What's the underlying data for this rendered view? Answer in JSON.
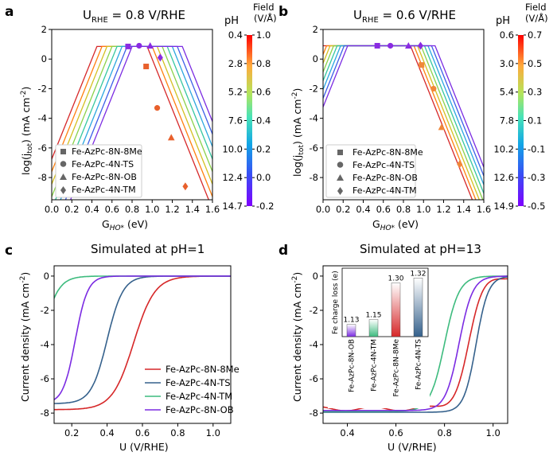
{
  "colors": {
    "red": "#d62728",
    "blue": "#35618c",
    "green": "#3dbb7e",
    "purple": "#7b2be2"
  },
  "panels": {
    "a": {
      "label": "a",
      "title_prefix": "U",
      "title_sub": "RHE",
      "title_suffix": " =  0.8 V/RHE",
      "ylabel": "log(j",
      "ylabel_sub": "tot",
      "ylabel_suffix": ") (mA cm",
      "ylabel_sup": "-2",
      "ylabel_end": ")",
      "xlabel": "G",
      "xlabel_sub": "HO*",
      "xlabel_suffix": " (eV)",
      "cbar_left_title": "pH",
      "cbar_right_title_1": "Field",
      "cbar_right_title_2": "(V/Å)",
      "cbar_left_ticks": [
        "0.4",
        "2.8",
        "5.2",
        "7.6",
        "10.0",
        "12.4",
        "14.7"
      ],
      "cbar_right_ticks": [
        "1.0",
        "0.8",
        "0.6",
        "0.4",
        "0.2",
        "0.0",
        "-0.2"
      ],
      "legend": [
        "Fe-AzPc-8N-8Me",
        "Fe-AzPc-4N-TS",
        "Fe-AzPc-8N-OB",
        "Fe-AzPc-4N-TM"
      ]
    },
    "b": {
      "label": "b",
      "title_prefix": "U",
      "title_sub": "RHE",
      "title_suffix": " =  0.6 V/RHE",
      "ylabel": "log(j",
      "ylabel_sub": "tot",
      "ylabel_suffix": ") (mA cm",
      "ylabel_sup": "-2",
      "ylabel_end": ")",
      "xlabel": "G",
      "xlabel_sub": "HO*",
      "xlabel_suffix": " (eV)",
      "cbar_left_title": "pH",
      "cbar_right_title_1": "Field",
      "cbar_right_title_2": "(V/Å)",
      "cbar_left_ticks": [
        "0.6",
        "3.0",
        "5.4",
        "7.8",
        "10.2",
        "12.6",
        "14.9"
      ],
      "cbar_right_ticks": [
        "0.7",
        "0.5",
        "0.3",
        "0.1",
        "-0.1",
        "-0.3",
        "-0.5"
      ],
      "legend": [
        "Fe-AzPc-8N-8Me",
        "Fe-AzPc-4N-TS",
        "Fe-AzPc-8N-OB",
        "Fe-AzPc-4N-TM"
      ]
    },
    "c": {
      "label": "c",
      "title": "Simulated at pH=1",
      "ylabel": "Current density (mA cm",
      "ylabel_sup": "-2",
      "ylabel_end": ")",
      "xlabel": "U (V/RHE)",
      "legend": [
        "Fe-AzPc-8N-8Me",
        "Fe-AzPc-4N-TS",
        "Fe-AzPc-4N-TM",
        "Fe-AzPc-8N-OB"
      ]
    },
    "d": {
      "label": "d",
      "title": "Simulated at pH=13",
      "ylabel": "Current density (mA cm",
      "ylabel_sup": "-2",
      "ylabel_end": ")",
      "xlabel": "U (V/RHE)",
      "inset_ylabel": "Fe charge loss (e)"
    }
  },
  "chart_data": [
    {
      "panel": "a",
      "type": "line",
      "xlabel": "G_HO* (eV)",
      "ylabel": "log(j_tot) (mA cm^-2)",
      "xlim": [
        0.0,
        1.6
      ],
      "ylim": [
        -9.5,
        2
      ],
      "xticks": [
        "0.0",
        "0.2",
        "0.4",
        "0.6",
        "0.8",
        "1.0",
        "1.2",
        "1.4",
        "1.6"
      ],
      "yticks": [
        "2",
        "0",
        "-2",
        "-4",
        "-6",
        "-8"
      ],
      "curves": {
        "plateau": 0.85,
        "count": 8,
        "left_start": 0.45,
        "right_start": 0.95,
        "step": 0.05,
        "slope": 16.9
      },
      "points": [
        {
          "name": "Fe-AzPc-8N-8Me",
          "x": [
            0.76,
            0.94
          ],
          "y": [
            0.85,
            -0.5
          ]
        },
        {
          "name": "Fe-AzPc-4N-TS",
          "x": [
            0.87,
            1.05
          ],
          "y": [
            0.9,
            -3.3
          ]
        },
        {
          "name": "Fe-AzPc-8N-OB",
          "x": [
            0.98,
            1.19
          ],
          "y": [
            0.9,
            -5.3
          ]
        },
        {
          "name": "Fe-AzPc-4N-TM",
          "x": [
            1.08,
            1.33
          ],
          "y": [
            0.1,
            -8.6
          ]
        }
      ]
    },
    {
      "panel": "b",
      "type": "line",
      "xlabel": "G_HO* (eV)",
      "ylabel": "log(j_tot) (mA cm^-2)",
      "xlim": [
        0.0,
        1.6
      ],
      "ylim": [
        -9.5,
        2
      ],
      "xticks": [
        "0.0",
        "0.2",
        "0.4",
        "0.6",
        "0.8",
        "1.0",
        "1.2",
        "1.4",
        "1.6"
      ],
      "yticks": [
        "2",
        "0",
        "-2",
        "-4",
        "-6",
        "-8"
      ],
      "curves": {
        "plateau": 0.9,
        "count": 8,
        "left_start": 0.0,
        "right_start": 0.87,
        "step": 0.035,
        "slope": 16.9
      },
      "points": [
        {
          "name": "Fe-AzPc-8N-8Me",
          "x": [
            0.54,
            0.98
          ],
          "y": [
            0.9,
            -0.4
          ]
        },
        {
          "name": "Fe-AzPc-4N-TS",
          "x": [
            0.67,
            1.1
          ],
          "y": [
            0.9,
            -2.0
          ]
        },
        {
          "name": "Fe-AzPc-8N-OB",
          "x": [
            0.85,
            1.18
          ],
          "y": [
            0.9,
            -4.6
          ]
        },
        {
          "name": "Fe-AzPc-4N-TM",
          "x": [
            0.97,
            1.36
          ],
          "y": [
            0.9,
            -7.1
          ]
        }
      ]
    },
    {
      "panel": "c",
      "type": "line",
      "title": "Simulated at pH=1",
      "xlabel": "U (V/RHE)",
      "ylabel": "Current density (mA cm^-2)",
      "xlim": [
        0.1,
        1.1
      ],
      "ylim": [
        -8.6,
        0.6
      ],
      "xticks": [
        "0.2",
        "0.4",
        "0.6",
        "0.8",
        "1.0"
      ],
      "yticks": [
        "0",
        "-2",
        "-4",
        "-6",
        "-8"
      ],
      "series": [
        {
          "name": "Fe-AzPc-8N-8Me",
          "limit": -7.8,
          "mid": 0.55,
          "width": 0.06
        },
        {
          "name": "Fe-AzPc-4N-TS",
          "limit": -7.45,
          "mid": 0.4,
          "width": 0.045
        },
        {
          "name": "Fe-AzPc-4N-TM",
          "limit": -7.45,
          "mid": 0.03,
          "width": 0.045
        },
        {
          "name": "Fe-AzPc-8N-OB",
          "limit": -7.45,
          "mid": 0.22,
          "width": 0.035
        }
      ]
    },
    {
      "panel": "d",
      "type": "line",
      "title": "Simulated at pH=13",
      "xlabel": "U (V/RHE)",
      "ylabel": "Current density (mA cm^-2)",
      "xlim": [
        0.3,
        1.06
      ],
      "ylim": [
        -8.6,
        0.6
      ],
      "xticks": [
        "0.4",
        "0.6",
        "0.8",
        "1.0"
      ],
      "yticks": [
        "0",
        "-2",
        "-4",
        "-6",
        "-8"
      ],
      "series": [
        {
          "name": "Fe-AzPc-8N-8Me",
          "limit": -7.75,
          "mid": 0.9,
          "width": 0.03
        },
        {
          "name": "Fe-AzPc-4N-TS",
          "limit": -7.95,
          "mid": 0.93,
          "width": 0.025
        },
        {
          "name": "Fe-AzPc-4N-TM",
          "limit": -7.9,
          "mid": 0.8,
          "width": 0.03
        },
        {
          "name": "Fe-AzPc-8N-OB",
          "limit": -7.85,
          "mid": 0.86,
          "width": 0.028
        }
      ],
      "inset": {
        "type": "bar",
        "ylabel": "Fe charge loss (e)",
        "categories": [
          "Fe-AzPc-8N-OB",
          "Fe-AzPc-4N-TM",
          "Fe-AzPc-8N-8Me",
          "Fe-AzPc-4N-TS"
        ],
        "values": [
          1.13,
          1.15,
          1.3,
          1.32
        ],
        "labels": [
          "1.13",
          "1.15",
          "1.30",
          "1.32"
        ],
        "ylim": [
          1.08,
          1.36
        ]
      }
    }
  ]
}
